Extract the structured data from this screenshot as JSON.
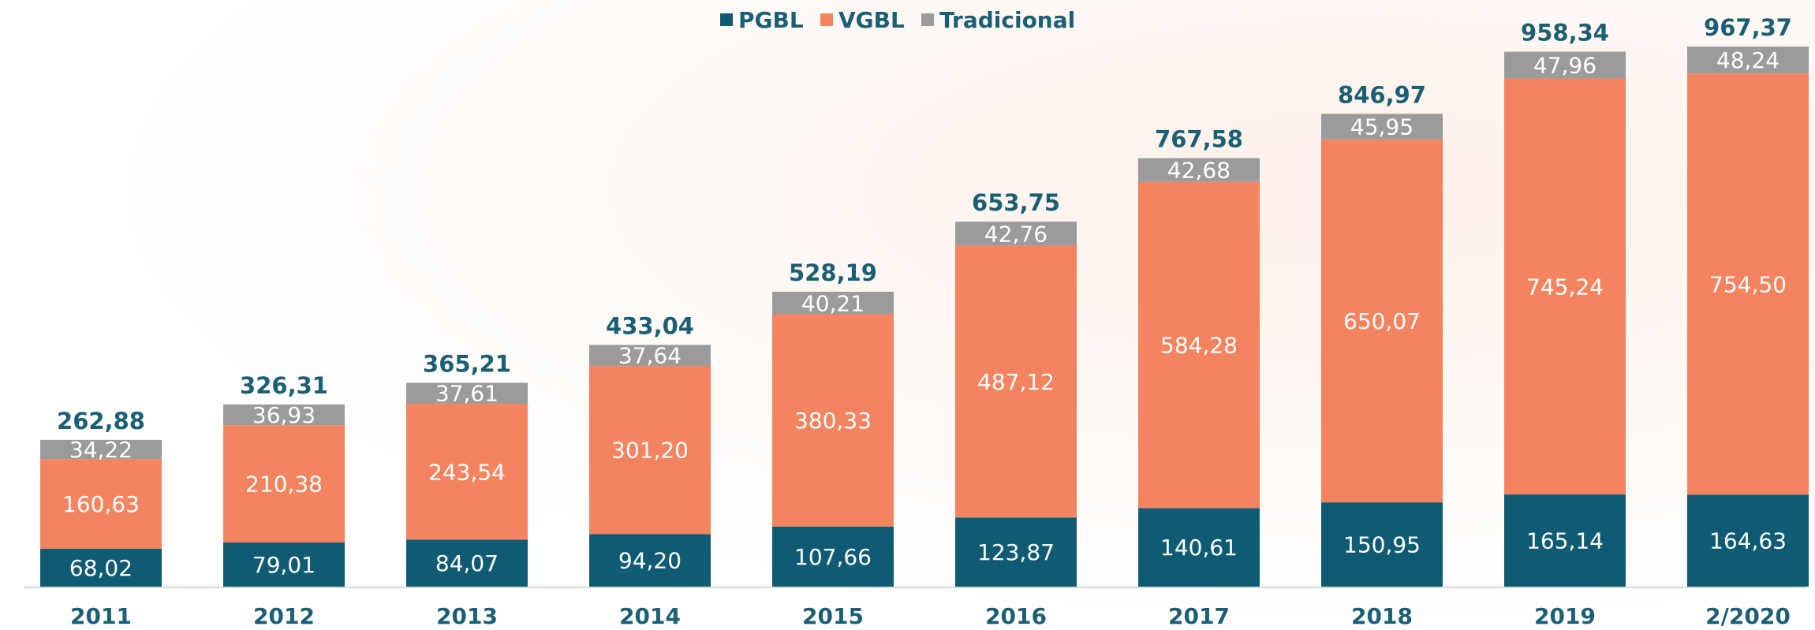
{
  "chart_data": {
    "type": "bar",
    "stacked": true,
    "categories": [
      "2011",
      "2012",
      "2013",
      "2014",
      "2015",
      "2016",
      "2017",
      "2018",
      "2019",
      "2/2020"
    ],
    "series": [
      {
        "name": "PGBL",
        "color": "#0f5b74",
        "values": [
          68.02,
          79.01,
          84.07,
          94.2,
          107.66,
          123.87,
          140.61,
          150.95,
          165.14,
          164.63
        ],
        "value_labels": [
          "68,02",
          "79,01",
          "84,07",
          "94,20",
          "107,66",
          "123,87",
          "140,61",
          "150,95",
          "165,14",
          "164,63"
        ]
      },
      {
        "name": "VGBL",
        "color": "#f4845f",
        "values": [
          160.63,
          210.38,
          243.54,
          301.2,
          380.33,
          487.12,
          584.28,
          650.07,
          745.24,
          754.5
        ],
        "value_labels": [
          "160,63",
          "210,38",
          "243,54",
          "301,20",
          "380,33",
          "487,12",
          "584,28",
          "650,07",
          "745,24",
          "754,50"
        ]
      },
      {
        "name": "Tradicional",
        "color": "#9b9b9b",
        "values": [
          34.22,
          36.93,
          37.61,
          37.64,
          40.21,
          42.76,
          42.68,
          45.95,
          47.96,
          48.24
        ],
        "value_labels": [
          "34,22",
          "36,93",
          "37,61",
          "37,64",
          "40,21",
          "42,76",
          "42,68",
          "45,95",
          "47,96",
          "48,24"
        ]
      }
    ],
    "totals": [
      262.88,
      326.31,
      365.21,
      433.04,
      528.19,
      653.75,
      767.58,
      846.97,
      958.34,
      967.37
    ],
    "total_labels": [
      "262,88",
      "326,31",
      "365,21",
      "433,04",
      "528,19",
      "653,75",
      "767,58",
      "846,97",
      "958,34",
      "967,37"
    ],
    "ylim": [
      0,
      1000
    ],
    "legend": "top"
  }
}
